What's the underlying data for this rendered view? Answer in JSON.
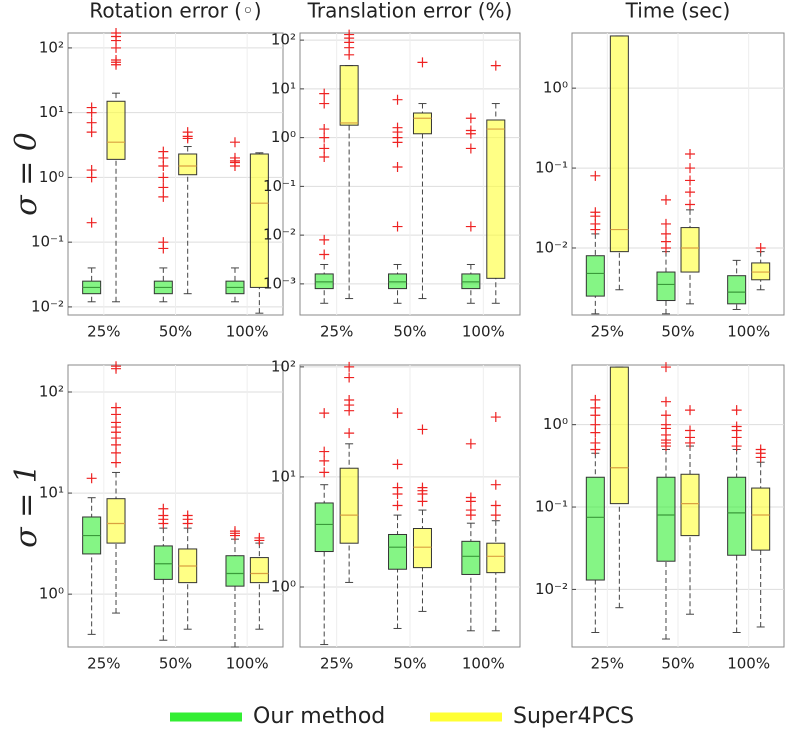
{
  "chart_data": [
    {
      "type": "box",
      "title": "Rotation error (◦)",
      "row_label": "σ = 0",
      "categories": [
        "25%",
        "50%",
        "100%"
      ],
      "log_scale": true,
      "grid": true,
      "ylim": [
        0.0075,
        170
      ],
      "yticks": [
        {
          "value": 0.01,
          "label": "10⁻²"
        },
        {
          "value": 0.1,
          "label": "10⁻¹"
        },
        {
          "value": 1,
          "label": "10⁰"
        },
        {
          "value": 10,
          "label": "10¹"
        },
        {
          "value": 100,
          "label": "10²"
        }
      ],
      "series": [
        {
          "boxes": [
            {
              "low": 0.012,
              "q1": 0.016,
              "median": 0.02,
              "q3": 0.025,
              "high": 0.04,
              "outliers": [
                0.2,
                1,
                1.3,
                5,
                7,
                10,
                12
              ]
            },
            {
              "low": 0.012,
              "q1": 0.016,
              "median": 0.02,
              "q3": 0.025,
              "high": 0.04,
              "outliers": [
                0.08,
                0.1,
                0.5,
                0.7,
                1,
                1.5,
                2,
                2.5
              ]
            },
            {
              "low": 0.012,
              "q1": 0.016,
              "median": 0.02,
              "q3": 0.025,
              "high": 0.04,
              "outliers": [
                1.5,
                1.7,
                1.8,
                2,
                3.5
              ]
            }
          ]
        },
        {
          "boxes": [
            {
              "low": 0.012,
              "q1": 1.9,
              "median": 3.5,
              "q3": 15,
              "high": 20,
              "outliers": [
                55,
                60,
                65,
                100,
                130,
                150,
                170
              ]
            },
            {
              "low": 0.016,
              "q1": 1.1,
              "median": 1.5,
              "q3": 2.3,
              "high": 3,
              "outliers": [
                4,
                4.3,
                5
              ]
            },
            {
              "low": 0.008,
              "q1": 0.02,
              "median": 0.4,
              "q3": 2.3,
              "high": 2.4,
              "outliers": []
            }
          ]
        }
      ]
    },
    {
      "type": "box",
      "title": "Translation error (%)",
      "categories": [
        "25%",
        "50%",
        "100%"
      ],
      "log_scale": true,
      "grid": true,
      "ylim": [
        0.00023,
        140
      ],
      "yticks": [
        {
          "value": 0.001,
          "label": "10⁻³"
        },
        {
          "value": 0.01,
          "label": "10⁻²"
        },
        {
          "value": 0.1,
          "label": "10⁻¹"
        },
        {
          "value": 1,
          "label": "10⁰"
        },
        {
          "value": 10,
          "label": "10¹"
        },
        {
          "value": 100,
          "label": "10²"
        }
      ],
      "series": [
        {
          "boxes": [
            {
              "low": 0.0004,
              "q1": 0.0008,
              "median": 0.0011,
              "q3": 0.0016,
              "high": 0.0025,
              "outliers": [
                0.004,
                0.008,
                0.4,
                0.6,
                1,
                1.5,
                5,
                8
              ]
            },
            {
              "low": 0.0004,
              "q1": 0.0008,
              "median": 0.0011,
              "q3": 0.0016,
              "high": 0.0025,
              "outliers": [
                0.015,
                0.25,
                0.8,
                1,
                1.3,
                1.6,
                6
              ]
            },
            {
              "low": 0.0004,
              "q1": 0.0008,
              "median": 0.0011,
              "q3": 0.0016,
              "high": 0.0025,
              "outliers": [
                0.015,
                0.6,
                1.2,
                1.4,
                2.5
              ]
            }
          ]
        },
        {
          "boxes": [
            {
              "low": 0.0005,
              "q1": 1.8,
              "median": 2,
              "q3": 30,
              "high": 30,
              "outliers": [
                50,
                70,
                90,
                110,
                130
              ]
            },
            {
              "low": 0.0005,
              "q1": 1.2,
              "median": 2.5,
              "q3": 3.2,
              "high": 5,
              "outliers": [
                35
              ]
            },
            {
              "low": 0.0004,
              "q1": 0.0013,
              "median": 1.5,
              "q3": 2.3,
              "high": 5,
              "outliers": [
                30
              ]
            }
          ]
        }
      ]
    },
    {
      "type": "box",
      "title": "Time (sec)",
      "categories": [
        "25%",
        "50%",
        "100%"
      ],
      "log_scale": true,
      "grid": true,
      "ylim": [
        0.00145,
        4.9
      ],
      "yticks": [
        {
          "value": 0.01,
          "label": "10⁻²"
        },
        {
          "value": 0.1,
          "label": "10⁻¹"
        },
        {
          "value": 1,
          "label": "10⁰"
        }
      ],
      "series": [
        {
          "boxes": [
            {
              "low": 0.0015,
              "q1": 0.0025,
              "median": 0.0048,
              "q3": 0.008,
              "high": 0.015,
              "outliers": [
                0.017,
                0.02,
                0.025,
                0.028,
                0.08
              ]
            },
            {
              "low": 0.0015,
              "q1": 0.0022,
              "median": 0.0035,
              "q3": 0.005,
              "high": 0.009,
              "outliers": [
                0.01,
                0.012,
                0.015,
                0.02,
                0.04
              ]
            },
            {
              "low": 0.0017,
              "q1": 0.002,
              "median": 0.0028,
              "q3": 0.0045,
              "high": 0.007,
              "outliers": []
            }
          ]
        },
        {
          "boxes": [
            {
              "low": 0.003,
              "q1": 0.009,
              "median": 0.017,
              "q3": 4.5,
              "high": 4.5,
              "outliers": []
            },
            {
              "low": 0.002,
              "q1": 0.005,
              "median": 0.01,
              "q3": 0.018,
              "high": 0.03,
              "outliers": [
                0.035,
                0.05,
                0.07,
                0.1,
                0.15
              ]
            },
            {
              "low": 0.003,
              "q1": 0.004,
              "median": 0.005,
              "q3": 0.0065,
              "high": 0.009,
              "outliers": [
                0.01
              ]
            }
          ]
        }
      ]
    },
    {
      "type": "box",
      "row_label": "σ = 1",
      "categories": [
        "25%",
        "50%",
        "100%"
      ],
      "log_scale": true,
      "grid": true,
      "ylim": [
        0.3,
        185
      ],
      "yticks": [
        {
          "value": 1,
          "label": "10⁰"
        },
        {
          "value": 10,
          "label": "10¹"
        },
        {
          "value": 100,
          "label": "10²"
        }
      ],
      "series": [
        {
          "boxes": [
            {
              "low": 0.4,
              "q1": 2.5,
              "median": 3.8,
              "q3": 5.8,
              "high": 9,
              "outliers": [
                14
              ]
            },
            {
              "low": 0.35,
              "q1": 1.4,
              "median": 2,
              "q3": 3,
              "high": 4.5,
              "outliers": [
                5,
                5.5,
                6,
                7
              ]
            },
            {
              "low": 0.3,
              "q1": 1.2,
              "median": 1.6,
              "q3": 2.4,
              "high": 3.5,
              "outliers": [
                3.8,
                4,
                4.2
              ]
            }
          ]
        },
        {
          "boxes": [
            {
              "low": 0.65,
              "q1": 3.2,
              "median": 5,
              "q3": 8.8,
              "high": 16,
              "outliers": [
                20,
                25,
                30,
                35,
                40,
                45,
                50,
                60,
                70,
                170,
                180
              ]
            },
            {
              "low": 0.45,
              "q1": 1.3,
              "median": 1.9,
              "q3": 2.8,
              "high": 4.5,
              "outliers": [
                5,
                5.5,
                6
              ]
            },
            {
              "low": 0.45,
              "q1": 1.3,
              "median": 1.6,
              "q3": 2.3,
              "high": 3.2,
              "outliers": [
                3.4,
                3.6
              ]
            }
          ]
        }
      ]
    },
    {
      "type": "box",
      "categories": [
        "25%",
        "50%",
        "100%"
      ],
      "log_scale": true,
      "grid": true,
      "ylim": [
        0.285,
        104
      ],
      "yticks": [
        {
          "value": 1,
          "label": "10⁰"
        },
        {
          "value": 10,
          "label": "10¹"
        },
        {
          "value": 100,
          "label": "10²"
        }
      ],
      "series": [
        {
          "boxes": [
            {
              "low": 0.3,
              "q1": 2.1,
              "median": 3.7,
              "q3": 5.8,
              "high": 8.5,
              "outliers": [
                11,
                14,
                17,
                38
              ]
            },
            {
              "low": 0.42,
              "q1": 1.45,
              "median": 2.3,
              "q3": 3,
              "high": 4.5,
              "outliers": [
                5.5,
                7,
                8,
                13,
                38
              ]
            },
            {
              "low": 0.4,
              "q1": 1.3,
              "median": 1.9,
              "q3": 2.6,
              "high": 3.8,
              "outliers": [
                4.5,
                5,
                6,
                6.5,
                20
              ]
            }
          ]
        },
        {
          "boxes": [
            {
              "low": 1.1,
              "q1": 2.5,
              "median": 4.5,
              "q3": 12,
              "high": 20,
              "outliers": [
                25,
                40,
                45,
                50,
                80,
                100
              ]
            },
            {
              "low": 0.6,
              "q1": 1.5,
              "median": 2.3,
              "q3": 3.4,
              "high": 5,
              "outliers": [
                6,
                7,
                7.5,
                8,
                27
              ]
            },
            {
              "low": 0.4,
              "q1": 1.35,
              "median": 1.9,
              "q3": 2.5,
              "high": 4,
              "outliers": [
                4.5,
                5.5,
                8.5,
                35
              ]
            }
          ]
        }
      ]
    },
    {
      "type": "box",
      "categories": [
        "25%",
        "50%",
        "100%"
      ],
      "log_scale": true,
      "grid": true,
      "ylim": [
        0.002,
        5.3
      ],
      "yticks": [
        {
          "value": 0.01,
          "label": "10⁻²"
        },
        {
          "value": 0.1,
          "label": "10⁻¹"
        },
        {
          "value": 1,
          "label": "10⁰"
        }
      ],
      "series": [
        {
          "boxes": [
            {
              "low": 0.003,
              "q1": 0.013,
              "median": 0.075,
              "q3": 0.23,
              "high": 0.45,
              "outliers": [
                0.5,
                0.6,
                0.8,
                1,
                1.3,
                1.6,
                2
              ]
            },
            {
              "low": 0.0025,
              "q1": 0.022,
              "median": 0.08,
              "q3": 0.23,
              "high": 0.5,
              "outliers": [
                0.55,
                0.6,
                0.65,
                0.75,
                0.9,
                1,
                1.3,
                1.9,
                5
              ]
            },
            {
              "low": 0.003,
              "q1": 0.026,
              "median": 0.085,
              "q3": 0.23,
              "high": 0.5,
              "outliers": [
                0.55,
                0.7,
                0.85,
                0.95,
                1.5
              ]
            }
          ]
        },
        {
          "boxes": [
            {
              "low": 0.006,
              "q1": 0.11,
              "median": 0.3,
              "q3": 5,
              "high": 5,
              "outliers": []
            },
            {
              "low": 0.005,
              "q1": 0.045,
              "median": 0.11,
              "q3": 0.25,
              "high": 0.55,
              "outliers": [
                0.6,
                0.7,
                0.85,
                1.5
              ]
            },
            {
              "low": 0.0035,
              "q1": 0.03,
              "median": 0.08,
              "q3": 0.17,
              "high": 0.35,
              "outliers": [
                0.4,
                0.45,
                0.5
              ]
            }
          ]
        }
      ]
    }
  ],
  "legend": [
    {
      "name": "Our method",
      "color": "#33ee33"
    },
    {
      "name": "Super4PCS",
      "color": "#ffff33"
    }
  ]
}
